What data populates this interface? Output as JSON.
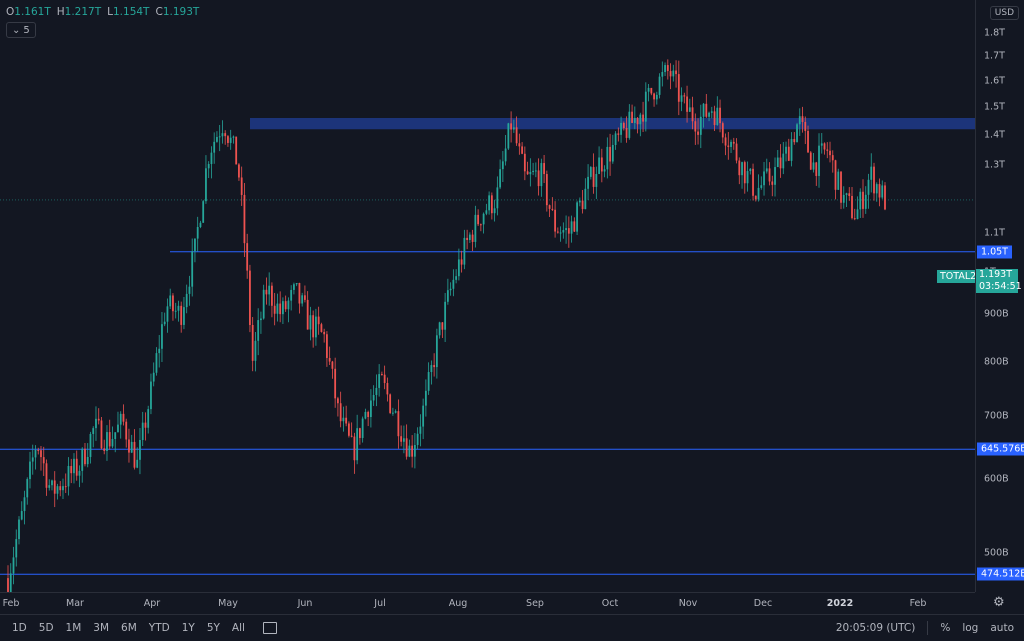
{
  "header": {
    "ohlc": [
      {
        "k": "O",
        "v": "1.161T"
      },
      {
        "k": "H",
        "v": "1.217T"
      },
      {
        "k": "L",
        "v": "1.154T"
      },
      {
        "k": "C",
        "v": "1.193T"
      }
    ],
    "collapse_label": "5",
    "currency": "USD"
  },
  "symbol": "TOTAL2",
  "last_price_label": "1.193T",
  "countdown": "03:54:51",
  "price_axis": {
    "ticks": [
      {
        "label": "1.8T",
        "value": 1.8
      },
      {
        "label": "1.7T",
        "value": 1.7
      },
      {
        "label": "1.6T",
        "value": 1.6
      },
      {
        "label": "1.5T",
        "value": 1.5
      },
      {
        "label": "1.4T",
        "value": 1.4
      },
      {
        "label": "1.3T",
        "value": 1.3
      },
      {
        "label": "1.1T",
        "value": 1.1
      },
      {
        "label": "1T",
        "value": 1.0
      },
      {
        "label": "900B",
        "value": 0.9
      },
      {
        "label": "800B",
        "value": 0.8
      },
      {
        "label": "700B",
        "value": 0.7
      },
      {
        "label": "600B",
        "value": 0.6
      },
      {
        "label": "500B",
        "value": 0.5
      }
    ]
  },
  "time_axis": {
    "labels": [
      {
        "label": "Feb",
        "bold": false
      },
      {
        "label": "Mar",
        "bold": false
      },
      {
        "label": "Apr",
        "bold": false
      },
      {
        "label": "May",
        "bold": false
      },
      {
        "label": "Jun",
        "bold": false
      },
      {
        "label": "Jul",
        "bold": false
      },
      {
        "label": "Aug",
        "bold": false
      },
      {
        "label": "Sep",
        "bold": false
      },
      {
        "label": "Oct",
        "bold": false
      },
      {
        "label": "Nov",
        "bold": false
      },
      {
        "label": "Dec",
        "bold": false
      },
      {
        "label": "2022",
        "bold": true
      },
      {
        "label": "Feb",
        "bold": false
      }
    ]
  },
  "bottom_toolbar": {
    "timeframes": [
      "1D",
      "5D",
      "1M",
      "3M",
      "6M",
      "YTD",
      "1Y",
      "5Y",
      "All"
    ],
    "clock": "20:05:09 (UTC)",
    "percent_label": "%",
    "log_label": "log",
    "auto_label": "auto"
  },
  "colors": {
    "background": "#131722",
    "up": "#26a69a",
    "down": "#ef5350",
    "level_line": "#2962ff",
    "zone": "#1e3a8a"
  },
  "chart_data": {
    "type": "candlestick",
    "scale": "log",
    "grid": false,
    "y_unit": "USD",
    "horizontal_levels": [
      {
        "label": "1.05T",
        "value": 1.05
      },
      {
        "label": "645.576B",
        "value": 0.645576
      },
      {
        "label": "474.512B",
        "value": 0.474512
      }
    ],
    "resistance_zone": {
      "low": 1.42,
      "high": 1.46
    },
    "last_price": 1.193,
    "path": [
      [
        "Feb",
        0.47
      ],
      [
        "Feb",
        0.55
      ],
      [
        "Feb",
        0.66
      ],
      [
        "Feb",
        0.58
      ],
      [
        "Feb",
        0.6
      ],
      [
        "Mar",
        0.62
      ],
      [
        "Mar",
        0.68
      ],
      [
        "Mar",
        0.66
      ],
      [
        "Mar",
        0.69
      ],
      [
        "Mar",
        0.62
      ],
      [
        "Apr",
        0.75
      ],
      [
        "Apr",
        0.92
      ],
      [
        "Apr",
        0.9
      ],
      [
        "Apr",
        1.05
      ],
      [
        "Apr",
        1.35
      ],
      [
        "May",
        1.45
      ],
      [
        "May",
        1.3
      ],
      [
        "May",
        0.8
      ],
      [
        "May",
        0.96
      ],
      [
        "May",
        0.9
      ],
      [
        "Jun",
        0.95
      ],
      [
        "Jun",
        0.88
      ],
      [
        "Jun",
        0.85
      ],
      [
        "Jun",
        0.7
      ],
      [
        "Jun",
        0.64
      ],
      [
        "Jul",
        0.72
      ],
      [
        "Jul",
        0.76
      ],
      [
        "Jul",
        0.7
      ],
      [
        "Jul",
        0.64
      ],
      [
        "Jul",
        0.72
      ],
      [
        "Aug",
        0.86
      ],
      [
        "Aug",
        0.98
      ],
      [
        "Aug",
        1.08
      ],
      [
        "Aug",
        1.16
      ],
      [
        "Aug",
        1.2
      ],
      [
        "Sep",
        1.44
      ],
      [
        "Sep",
        1.25
      ],
      [
        "Sep",
        1.28
      ],
      [
        "Sep",
        1.12
      ],
      [
        "Sep",
        1.1
      ],
      [
        "Oct",
        1.2
      ],
      [
        "Oct",
        1.3
      ],
      [
        "Oct",
        1.35
      ],
      [
        "Oct",
        1.42
      ],
      [
        "Oct",
        1.48
      ],
      [
        "Nov",
        1.58
      ],
      [
        "Nov",
        1.64
      ],
      [
        "Nov",
        1.5
      ],
      [
        "Nov",
        1.45
      ],
      [
        "Nov",
        1.5
      ],
      [
        "Dec",
        1.4
      ],
      [
        "Dec",
        1.3
      ],
      [
        "Dec",
        1.22
      ],
      [
        "Dec",
        1.26
      ],
      [
        "Dec",
        1.32
      ],
      [
        "Dec",
        1.45
      ],
      [
        "Dec",
        1.3
      ],
      [
        "Dec",
        1.35
      ],
      [
        "2022",
        1.2
      ],
      [
        "2022",
        1.15
      ],
      [
        "2022",
        1.27
      ],
      [
        "2022",
        1.193
      ]
    ]
  }
}
